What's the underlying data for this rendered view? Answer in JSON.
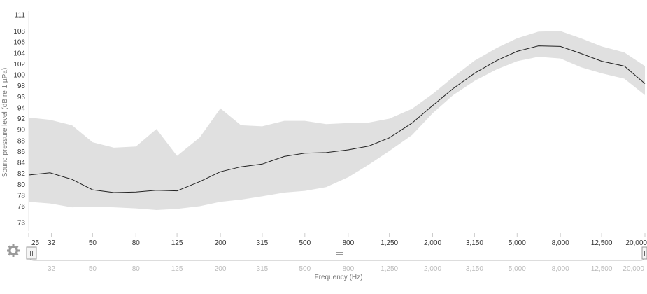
{
  "chart_data": {
    "type": "area",
    "title": "",
    "xlabel": "Frequency (Hz)",
    "ylabel": "Sound pressure level (dB re 1 µPa)",
    "ylim": [
      73,
      111
    ],
    "y_ticks": [
      73,
      76,
      78,
      80,
      82,
      84,
      86,
      88,
      90,
      92,
      94,
      96,
      98,
      100,
      102,
      104,
      106,
      108,
      111
    ],
    "x_scale": "log",
    "x_tick_values": [
      25,
      32,
      50,
      80,
      125,
      200,
      315,
      500,
      800,
      1250,
      2000,
      3150,
      5000,
      8000,
      12500,
      20000
    ],
    "x_tick_labels": [
      "25",
      "32",
      "50",
      "80",
      "125",
      "200",
      "315",
      "500",
      "800",
      "1,250",
      "2,000",
      "3,150",
      "5,000",
      "8,000",
      "12,500",
      "20,000"
    ],
    "navigator_tick_labels": [
      "32",
      "50",
      "80",
      "125",
      "200",
      "315",
      "500",
      "800",
      "1,250",
      "2,000",
      "3,150",
      "5,000",
      "8,000",
      "12,500",
      "20,000"
    ],
    "x": [
      25,
      31.5,
      40,
      50,
      63,
      80,
      100,
      125,
      160,
      200,
      250,
      315,
      400,
      500,
      630,
      800,
      1000,
      1250,
      1600,
      2000,
      2500,
      3150,
      4000,
      5000,
      6300,
      8000,
      10000,
      12500,
      16000,
      20000
    ],
    "series": [
      {
        "values": [
          81.7,
          82.1,
          80.9,
          79.0,
          78.5,
          78.6,
          78.9,
          78.8,
          80.5,
          82.3,
          83.2,
          83.7,
          85.1,
          85.7,
          85.8,
          86.3,
          87.0,
          88.5,
          91.2,
          94.4,
          97.5,
          100.3,
          102.6,
          104.3,
          105.3,
          105.2,
          103.9,
          102.5,
          101.6,
          98.4
        ]
      },
      {
        "type": "range",
        "low": [
          76.8,
          76.5,
          75.8,
          75.9,
          75.8,
          75.6,
          75.3,
          75.5,
          76.0,
          76.8,
          77.2,
          77.8,
          78.5,
          78.8,
          79.5,
          81.3,
          83.6,
          86.1,
          89.0,
          93.0,
          96.3,
          98.9,
          101.0,
          102.5,
          103.3,
          103.0,
          101.4,
          100.3,
          99.3,
          96.3
        ],
        "high": [
          92.2,
          91.8,
          90.8,
          87.7,
          86.7,
          86.9,
          90.1,
          85.2,
          88.6,
          93.9,
          90.8,
          90.6,
          91.6,
          91.6,
          91.0,
          91.2,
          91.3,
          92.0,
          93.8,
          96.5,
          99.6,
          102.6,
          104.9,
          106.7,
          107.9,
          108.0,
          106.7,
          105.2,
          104.1,
          101.6
        ]
      }
    ],
    "grid": false,
    "legend": "none"
  },
  "icons": {
    "settings": "gear-icon",
    "navigator_left": "left-handle-icon",
    "navigator_right": "right-handle-icon",
    "navigator_scroll": "scroll-grip-icon"
  },
  "colors": {
    "line": "#222222",
    "range": "#e0e0e0",
    "tick_text": "#333333",
    "gear": "#9a9a9a"
  }
}
